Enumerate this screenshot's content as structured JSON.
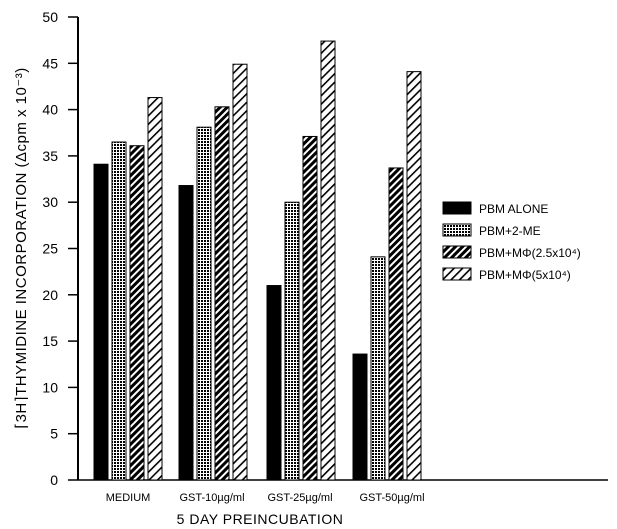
{
  "chart_data": {
    "type": "bar",
    "title": "",
    "xlabel": "5 DAY PREINCUBATION",
    "ylabel_bracket": "3H",
    "ylabel": "THYMIDINE INCORPORATION (Δcpm x 10-3)",
    "ylabel_display": "⌈3H⌉THYMIDINE INCORPORATION (Δcpm x 10⁻³)",
    "ylim": [
      0,
      50
    ],
    "yticks": [
      "0",
      "5",
      "10",
      "15",
      "20",
      "25",
      "30",
      "35",
      "40",
      "45",
      "50"
    ],
    "categories": [
      "MEDIUM",
      "GST-10µg/ml",
      "GST-25µg/ml",
      "GST-50µg/ml"
    ],
    "series": [
      {
        "name": "PBM ALONE",
        "values": [
          34.1,
          31.8,
          21.0,
          13.6
        ],
        "pattern": "solid"
      },
      {
        "name": "PBM+2-ME",
        "values": [
          36.5,
          38.1,
          30.0,
          24.1
        ],
        "pattern": "dots"
      },
      {
        "name": "PBM+MΦ(2.5x10⁴)",
        "values": [
          36.1,
          40.3,
          37.1,
          33.7
        ],
        "pattern": "dense-hatch"
      },
      {
        "name": "PBM+MΦ(5x10⁴)",
        "values": [
          41.3,
          44.9,
          47.4,
          44.1
        ],
        "pattern": "light-hatch"
      }
    ],
    "legend_position": "right",
    "grid": false
  }
}
